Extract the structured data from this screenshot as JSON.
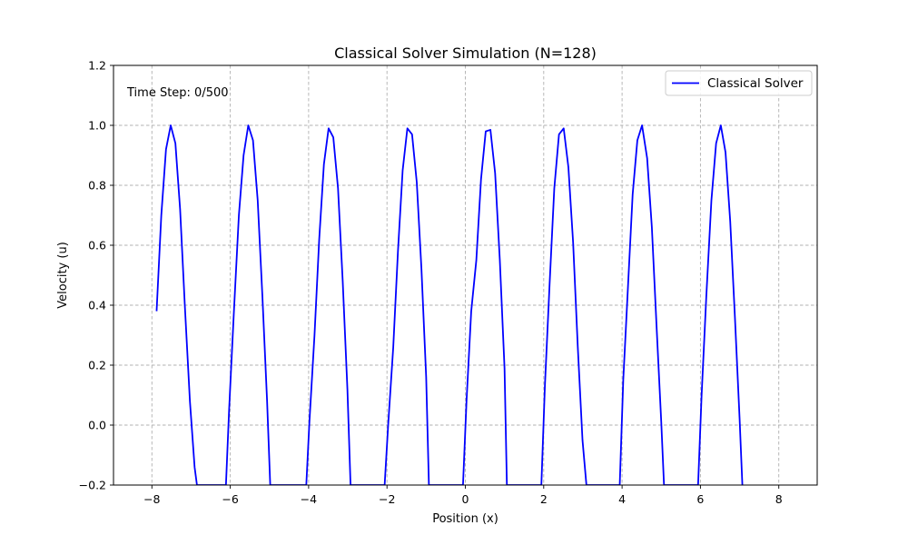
{
  "chart_data": {
    "type": "line",
    "title": "Classical Solver Simulation (N=128)",
    "xlabel": "Position (x)",
    "ylabel": "Velocity (u)",
    "annotation": "Time Step: 0/500",
    "xlim": [
      -8.98,
      8.98
    ],
    "ylim": [
      -0.2,
      1.2
    ],
    "xticks": [
      -8,
      -6,
      -4,
      -2,
      0,
      2,
      4,
      6,
      8
    ],
    "xtick_labels": [
      "−8",
      "−6",
      "−4",
      "−2",
      "0",
      "2",
      "4",
      "6",
      "8"
    ],
    "yticks": [
      -0.2,
      0.0,
      0.2,
      0.4,
      0.6,
      0.8,
      1.0,
      1.2
    ],
    "ytick_labels": [
      "−0.2",
      "0.0",
      "0.2",
      "0.4",
      "0.6",
      "0.8",
      "1.0",
      "1.2"
    ],
    "grid": true,
    "legend_position": "upper right",
    "series": [
      {
        "name": "Classical Solver",
        "color": "#0000ff",
        "x": [
          -7.88,
          -7.76,
          -7.64,
          -7.52,
          -7.4,
          -7.28,
          -7.16,
          -7.03,
          -6.91,
          -6.85,
          -6.11,
          -6.03,
          -5.91,
          -5.78,
          -5.66,
          -5.54,
          -5.42,
          -5.3,
          -5.18,
          -5.06,
          -4.98,
          -4.06,
          -3.98,
          -3.85,
          -3.73,
          -3.61,
          -3.49,
          -3.37,
          -3.25,
          -3.13,
          -3.01,
          -2.93,
          -2.06,
          -1.97,
          -1.84,
          -1.72,
          -1.6,
          -1.48,
          -1.36,
          -1.24,
          -1.12,
          -1.0,
          -0.93,
          -0.06,
          0.03,
          0.15,
          0.28,
          0.4,
          0.52,
          0.64,
          0.76,
          0.88,
          1.0,
          1.06,
          1.94,
          2.03,
          2.15,
          2.27,
          2.39,
          2.51,
          2.63,
          2.75,
          2.87,
          2.99,
          3.09,
          3.94,
          4.03,
          4.15,
          4.27,
          4.39,
          4.51,
          4.64,
          4.76,
          4.88,
          5.0,
          5.07,
          5.94,
          6.03,
          6.15,
          6.28,
          6.4,
          6.52,
          6.64,
          6.76,
          6.88,
          7.0,
          7.07
        ],
        "y": [
          0.38,
          0.7,
          0.92,
          1.0,
          0.94,
          0.72,
          0.4,
          0.08,
          -0.14,
          -0.2,
          -0.2,
          0.05,
          0.37,
          0.7,
          0.9,
          1.0,
          0.95,
          0.75,
          0.43,
          0.08,
          -0.2,
          -0.2,
          0.01,
          0.3,
          0.62,
          0.87,
          0.99,
          0.96,
          0.79,
          0.48,
          0.12,
          -0.2,
          -0.2,
          0.0,
          0.26,
          0.58,
          0.85,
          0.99,
          0.97,
          0.81,
          0.52,
          0.16,
          -0.2,
          -0.2,
          0.08,
          0.38,
          0.55,
          0.82,
          0.98,
          0.985,
          0.84,
          0.55,
          0.19,
          -0.2,
          -0.2,
          0.13,
          0.47,
          0.79,
          0.97,
          0.99,
          0.86,
          0.61,
          0.26,
          -0.05,
          -0.2,
          -0.2,
          0.15,
          0.46,
          0.77,
          0.95,
          1.0,
          0.89,
          0.66,
          0.33,
          0.01,
          -0.2,
          -0.2,
          0.1,
          0.43,
          0.75,
          0.94,
          1.0,
          0.91,
          0.68,
          0.36,
          0.02,
          -0.2
        ]
      }
    ]
  }
}
